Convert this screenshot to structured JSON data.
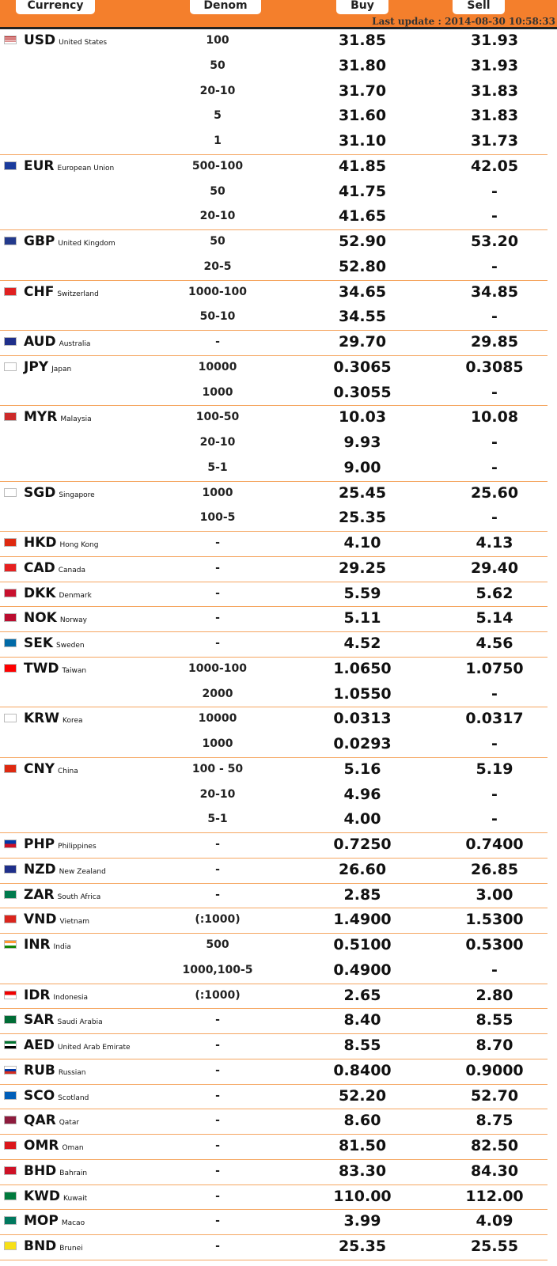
{
  "header": {
    "columns": [
      "Currency",
      "Denom",
      "Buy",
      "Sell"
    ],
    "last_update": "Last update : 2014-08-30 10:58:33"
  },
  "rates": [
    {
      "code": "USD",
      "country": "United States",
      "rows": [
        [
          "100",
          "31.85",
          "31.93"
        ],
        [
          "50",
          "31.80",
          "31.93"
        ],
        [
          "20-10",
          "31.70",
          "31.83"
        ],
        [
          "5",
          "31.60",
          "31.83"
        ],
        [
          "1",
          "31.10",
          "31.73"
        ]
      ]
    },
    {
      "code": "EUR",
      "country": "European Union",
      "rows": [
        [
          "500-100",
          "41.85",
          "42.05"
        ],
        [
          "50",
          "41.75",
          "-"
        ],
        [
          "20-10",
          "41.65",
          "-"
        ]
      ]
    },
    {
      "code": "GBP",
      "country": "United Kingdom",
      "rows": [
        [
          "50",
          "52.90",
          "53.20"
        ],
        [
          "20-5",
          "52.80",
          "-"
        ]
      ]
    },
    {
      "code": "CHF",
      "country": "Switzerland",
      "rows": [
        [
          "1000-100",
          "34.65",
          "34.85"
        ],
        [
          "50-10",
          "34.55",
          "-"
        ]
      ]
    },
    {
      "code": "AUD",
      "country": "Australia",
      "rows": [
        [
          "-",
          "29.70",
          "29.85"
        ]
      ]
    },
    {
      "code": "JPY",
      "country": "Japan",
      "rows": [
        [
          "10000",
          "0.3065",
          "0.3085"
        ],
        [
          "1000",
          "0.3055",
          "-"
        ]
      ]
    },
    {
      "code": "MYR",
      "country": "Malaysia",
      "rows": [
        [
          "100-50",
          "10.03",
          "10.08"
        ],
        [
          "20-10",
          "9.93",
          "-"
        ],
        [
          "5-1",
          "9.00",
          "-"
        ]
      ]
    },
    {
      "code": "SGD",
      "country": "Singapore",
      "rows": [
        [
          "1000",
          "25.45",
          "25.60"
        ],
        [
          "100-5",
          "25.35",
          "-"
        ]
      ]
    },
    {
      "code": "HKD",
      "country": "Hong Kong",
      "rows": [
        [
          "-",
          "4.10",
          "4.13"
        ]
      ]
    },
    {
      "code": "CAD",
      "country": "Canada",
      "rows": [
        [
          "-",
          "29.25",
          "29.40"
        ]
      ]
    },
    {
      "code": "DKK",
      "country": "Denmark",
      "rows": [
        [
          "-",
          "5.59",
          "5.62"
        ]
      ]
    },
    {
      "code": "NOK",
      "country": "Norway",
      "rows": [
        [
          "-",
          "5.11",
          "5.14"
        ]
      ]
    },
    {
      "code": "SEK",
      "country": "Sweden",
      "rows": [
        [
          "-",
          "4.52",
          "4.56"
        ]
      ]
    },
    {
      "code": "TWD",
      "country": "Taiwan",
      "rows": [
        [
          "1000-100",
          "1.0650",
          "1.0750"
        ],
        [
          "2000",
          "1.0550",
          "-"
        ]
      ]
    },
    {
      "code": "KRW",
      "country": "Korea",
      "rows": [
        [
          "10000",
          "0.0313",
          "0.0317"
        ],
        [
          "1000",
          "0.0293",
          "-"
        ]
      ]
    },
    {
      "code": "CNY",
      "country": "China",
      "rows": [
        [
          "100 - 50",
          "5.16",
          "5.19"
        ],
        [
          "20-10",
          "4.96",
          "-"
        ],
        [
          "5-1",
          "4.00",
          "-"
        ]
      ]
    },
    {
      "code": "PHP",
      "country": "Philippines",
      "rows": [
        [
          "-",
          "0.7250",
          "0.7400"
        ]
      ]
    },
    {
      "code": "NZD",
      "country": "New Zealand",
      "rows": [
        [
          "-",
          "26.60",
          "26.85"
        ]
      ]
    },
    {
      "code": "ZAR",
      "country": "South Africa",
      "rows": [
        [
          "-",
          "2.85",
          "3.00"
        ]
      ]
    },
    {
      "code": "VND",
      "country": "Vietnam",
      "rows": [
        [
          "(:1000)",
          "1.4900",
          "1.5300"
        ]
      ]
    },
    {
      "code": "INR",
      "country": "India",
      "rows": [
        [
          "500",
          "0.5100",
          "0.5300"
        ],
        [
          "1000,100-5",
          "0.4900",
          "-"
        ]
      ]
    },
    {
      "code": "IDR",
      "country": "Indonesia",
      "rows": [
        [
          "(:1000)",
          "2.65",
          "2.80"
        ]
      ]
    },
    {
      "code": "SAR",
      "country": "Saudi Arabia",
      "rows": [
        [
          "-",
          "8.40",
          "8.55"
        ]
      ]
    },
    {
      "code": "AED",
      "country": "United Arab Emirate",
      "rows": [
        [
          "-",
          "8.55",
          "8.70"
        ]
      ]
    },
    {
      "code": "RUB",
      "country": "Russian",
      "rows": [
        [
          "-",
          "0.8400",
          "0.9000"
        ]
      ]
    },
    {
      "code": "SCO",
      "country": "Scotland",
      "rows": [
        [
          "-",
          "52.20",
          "52.70"
        ]
      ]
    },
    {
      "code": "QAR",
      "country": "Qatar",
      "rows": [
        [
          "-",
          "8.60",
          "8.75"
        ]
      ]
    },
    {
      "code": "OMR",
      "country": "Oman",
      "rows": [
        [
          "-",
          "81.50",
          "82.50"
        ]
      ]
    },
    {
      "code": "BHD",
      "country": "Bahrain",
      "rows": [
        [
          "-",
          "83.30",
          "84.30"
        ]
      ]
    },
    {
      "code": "KWD",
      "country": "Kuwait",
      "rows": [
        [
          "-",
          "110.00",
          "112.00"
        ]
      ]
    },
    {
      "code": "MOP",
      "country": "Macao",
      "rows": [
        [
          "-",
          "3.99",
          "4.09"
        ]
      ]
    },
    {
      "code": "BND",
      "country": "Brunei",
      "rows": [
        [
          "-",
          "25.35",
          "25.55"
        ]
      ]
    }
  ]
}
